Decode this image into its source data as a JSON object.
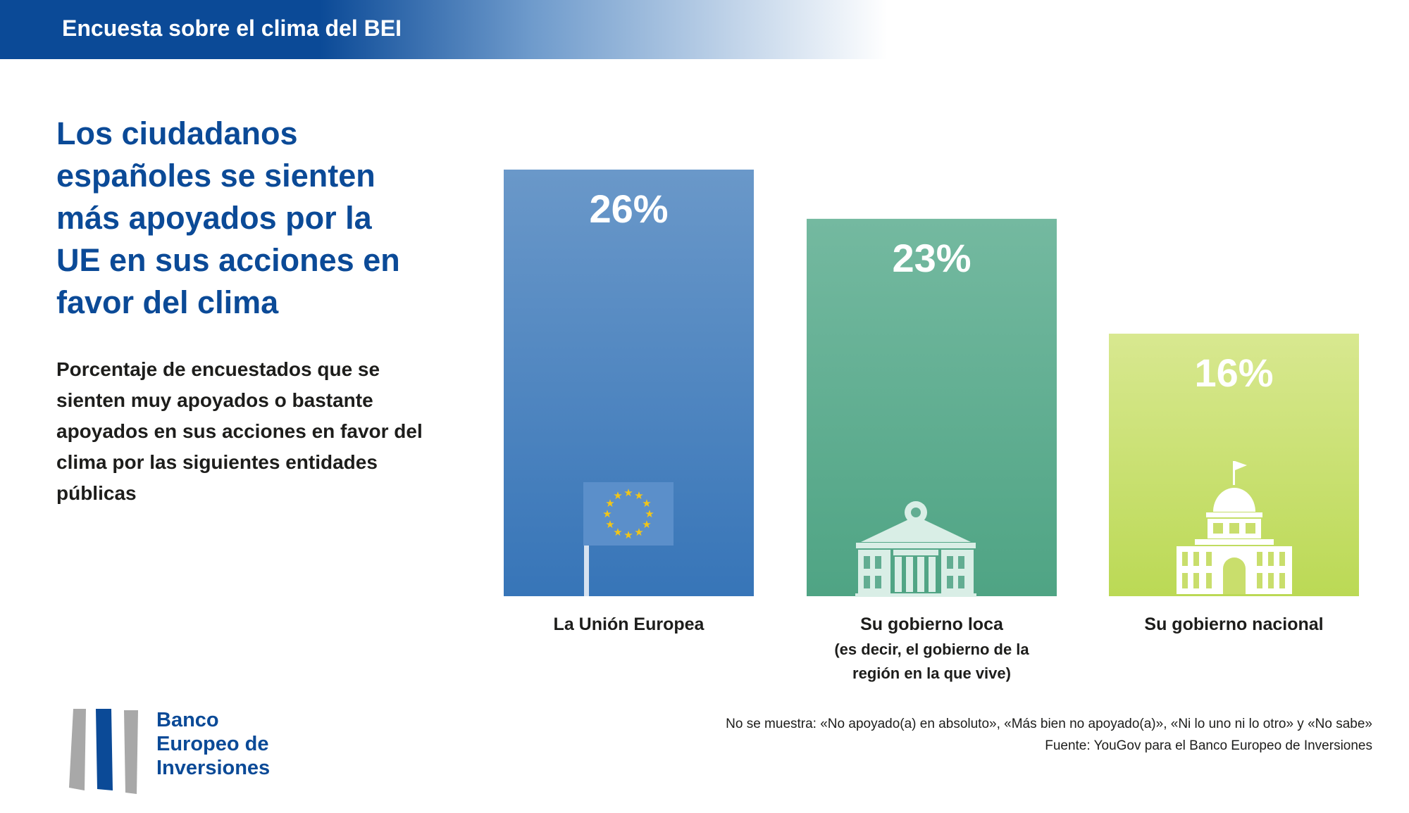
{
  "banner": {
    "title": "Encuesta sobre el clima del BEI"
  },
  "headline": "Los ciudadanos españoles se sienten más apoyados por la UE en sus acciones en favor del clima",
  "subtitle": "Porcentaje de encuestados que se sienten muy apoyados o bastante apoyados en sus acciones en favor del clima por las siguientes entidades públicas",
  "chart_data": {
    "type": "bar",
    "categories": [
      "La Unión Europea",
      "Su gobierno loca",
      "Su gobierno nacional"
    ],
    "category_sublabels": [
      "",
      "(es decir, el gobierno de la región en la que vive)",
      ""
    ],
    "values": [
      26,
      23,
      16
    ],
    "value_labels": [
      "26%",
      "23%",
      "16%"
    ],
    "unit": "%",
    "ylim": [
      0,
      29
    ],
    "grid": false,
    "legend": "none",
    "colors": [
      {
        "top": "#6a98c9",
        "bottom": "#3775b8"
      },
      {
        "top": "#74b9a0",
        "bottom": "#4fa484"
      },
      {
        "top": "#d8e890",
        "bottom": "#bbd955"
      }
    ],
    "icons": [
      "eu-flag-icon",
      "town-hall-icon",
      "parliament-dome-icon"
    ]
  },
  "logo": {
    "lines": [
      "Banco",
      "Europeo de",
      "Inversiones"
    ],
    "icon": "eib-logo-icon",
    "blue": "#0b4a97",
    "grey": "#a8a8a8"
  },
  "footnotes": [
    "No se muestra: «No apoyado(a) en absoluto», «Más bien no apoyado(a)», «Ni lo uno ni lo otro» y «No sabe»",
    "Fuente: YouGov para el Banco Europeo de Inversiones"
  ]
}
